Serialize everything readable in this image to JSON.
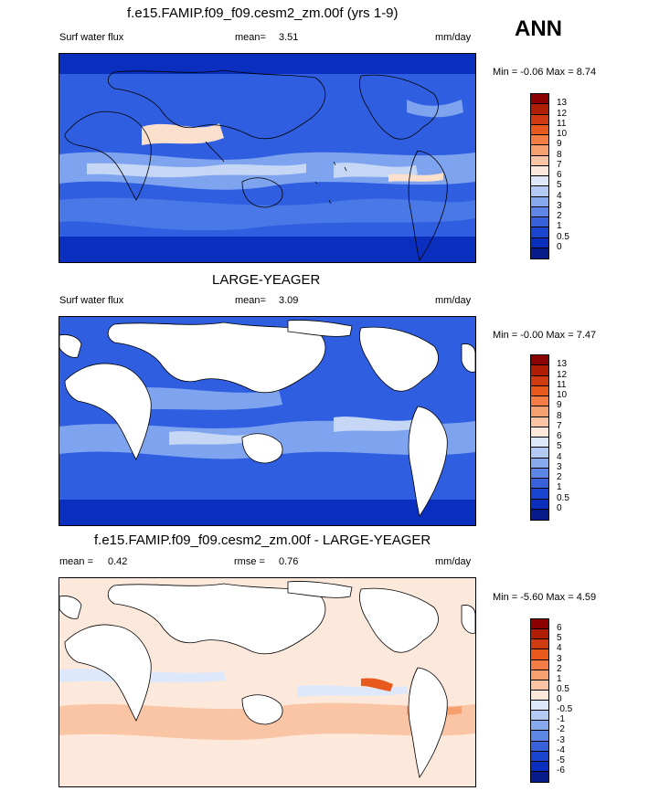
{
  "season": "ANN",
  "colors": {
    "ocean_dark": "#0a2fbf",
    "ocean_mid": "#2f5fe0",
    "ocean_light": "#7ea4ef",
    "ocean_pale": "#c6d7f6",
    "warm_pale": "#fbe0cd",
    "warm_mid": "#f3b394",
    "land": "#ffffff"
  },
  "panels": [
    {
      "title": "f.e15.FAMIP.f09_f09.cesm2_zm.00f (yrs 1-9)",
      "variable": "Surf water flux",
      "stat_label": "mean=",
      "stat_value": "3.51",
      "units": "mm/day",
      "minmax": "Min = -0.06 Max =  8.74",
      "colorbar_labels": [
        "13",
        "12",
        "11",
        "10",
        "9",
        "8",
        "7",
        "6",
        "5",
        "4",
        "3",
        "2",
        "1",
        "0.5",
        "0"
      ],
      "colorbar_colors": [
        "#8b0000",
        "#b01e05",
        "#cf3a12",
        "#e8591e",
        "#f37d45",
        "#f6a070",
        "#f9c5a4",
        "#fde9dc",
        "#dde8fb",
        "#b3caf5",
        "#87a9ee",
        "#5d86e6",
        "#3762dc",
        "#1a46cf",
        "#0a2fbf",
        "#061a8a"
      ],
      "grid_masked_land": false
    },
    {
      "title": "LARGE-YEAGER",
      "variable": "Surf water flux",
      "stat_label": "mean=",
      "stat_value": "3.09",
      "units": "mm/day",
      "minmax": "Min = -0.00 Max =  7.47",
      "colorbar_labels": [
        "13",
        "12",
        "11",
        "10",
        "9",
        "8",
        "7",
        "6",
        "5",
        "4",
        "3",
        "2",
        "1",
        "0.5",
        "0"
      ],
      "colorbar_colors": [
        "#8b0000",
        "#b01e05",
        "#cf3a12",
        "#e8591e",
        "#f37d45",
        "#f6a070",
        "#f9c5a4",
        "#fde9dc",
        "#dde8fb",
        "#b3caf5",
        "#87a9ee",
        "#5d86e6",
        "#3762dc",
        "#1a46cf",
        "#0a2fbf",
        "#061a8a"
      ],
      "grid_masked_land": true
    },
    {
      "title": "f.e15.FAMIP.f09_f09.cesm2_zm.00f - LARGE-YEAGER",
      "stat_label": "mean =",
      "stat_value": "0.42",
      "stat2_label": "rmse =",
      "stat2_value": "0.76",
      "units": "mm/day",
      "minmax": "Min = -5.60 Max =  4.59",
      "colorbar_labels": [
        "6",
        "5",
        "4",
        "3",
        "2",
        "1",
        "0.5",
        "0",
        "-0.5",
        "-1",
        "-2",
        "-3",
        "-4",
        "-5",
        "-6"
      ],
      "colorbar_colors": [
        "#8b0000",
        "#b01e05",
        "#cf3a12",
        "#e8591e",
        "#f37d45",
        "#f6a070",
        "#f9c5a4",
        "#fde9dc",
        "#dde8fb",
        "#b3caf5",
        "#87a9ee",
        "#5d86e6",
        "#3762dc",
        "#1a46cf",
        "#0a2fbf",
        "#061a8a"
      ],
      "grid_masked_land": true
    }
  ]
}
